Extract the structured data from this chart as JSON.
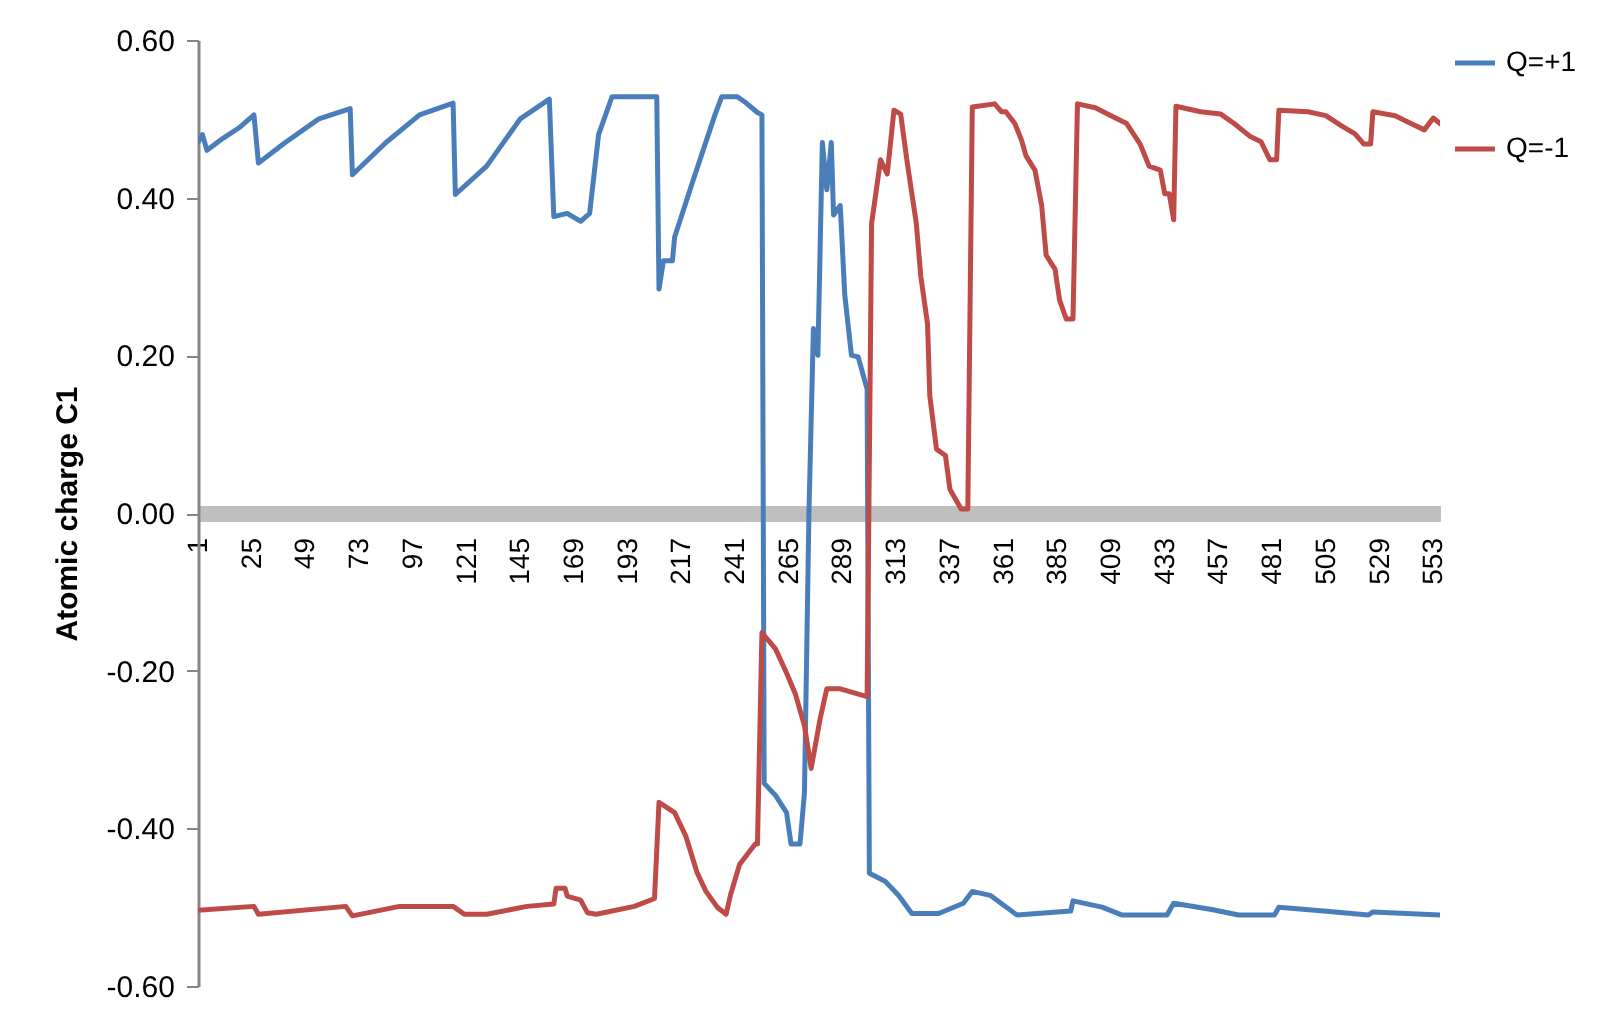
{
  "chart_data": {
    "type": "line",
    "ylabel": "Atomic charge C1",
    "xlim": [
      1,
      556
    ],
    "xticks": [
      1,
      25,
      49,
      73,
      97,
      121,
      145,
      169,
      193,
      217,
      241,
      265,
      289,
      313,
      337,
      361,
      385,
      409,
      433,
      457,
      481,
      505,
      529,
      553
    ],
    "ylim": [
      -0.6,
      0.6
    ],
    "yticks": [
      {
        "value": -0.6,
        "label": "-0.60"
      },
      {
        "value": -0.4,
        "label": "-0.40"
      },
      {
        "value": -0.2,
        "label": "-0.20"
      },
      {
        "value": 0,
        "label": "0.00"
      },
      {
        "value": 0.2,
        "label": "0.20"
      },
      {
        "value": 0.4,
        "label": "0.40"
      },
      {
        "value": 0.6,
        "label": "0.60"
      }
    ],
    "grid": false,
    "legend": "right",
    "marker": "none",
    "line_style": "solid",
    "series": [
      {
        "name": "Q=+1",
        "color": "#4a7ebb",
        "x": [
          1,
          3,
          5,
          12,
          20,
          26,
          28,
          40,
          55,
          69,
          70,
          85,
          100,
          115,
          116,
          130,
          145,
          158,
          160,
          166,
          172,
          176,
          180,
          186,
          206,
          207,
          209,
          213,
          214,
          222,
          232,
          235,
          242,
          246,
          251,
          253,
          254,
          259,
          264,
          266,
          270,
          272,
          274,
          276,
          278,
          280,
          282,
          284,
          285,
          288,
          290,
          293,
          296,
          300,
          301,
          308,
          314,
          320,
          332,
          343,
          347,
          355,
          367,
          391,
          392,
          405,
          414,
          434,
          437,
          454,
          466,
          482,
          484,
          504,
          524,
          526,
          556
        ],
        "values": [
          0.47,
          0.48,
          0.46,
          0.475,
          0.49,
          0.505,
          0.444,
          0.47,
          0.5,
          0.513,
          0.429,
          0.47,
          0.505,
          0.52,
          0.404,
          0.44,
          0.5,
          0.525,
          0.376,
          0.38,
          0.37,
          0.38,
          0.48,
          0.528,
          0.528,
          0.284,
          0.32,
          0.32,
          0.35,
          0.42,
          0.505,
          0.528,
          0.528,
          0.52,
          0.508,
          0.505,
          -0.343,
          -0.358,
          -0.38,
          -0.42,
          -0.42,
          -0.355,
          0,
          0.234,
          0.2,
          0.47,
          0.41,
          0.47,
          0.378,
          0.39,
          0.277,
          0.2,
          0.198,
          0.157,
          -0.457,
          -0.467,
          -0.485,
          -0.508,
          -0.508,
          -0.495,
          -0.48,
          -0.485,
          -0.51,
          -0.505,
          -0.492,
          -0.5,
          -0.51,
          -0.51,
          -0.495,
          -0.503,
          -0.51,
          -0.51,
          -0.5,
          -0.505,
          -0.51,
          -0.506,
          -0.51
        ]
      },
      {
        "name": "Q=-1",
        "color": "#be4b48",
        "x": [
          1,
          26,
          28,
          67,
          70,
          91,
          115,
          120,
          130,
          148,
          160,
          161,
          165,
          166,
          172,
          175,
          179,
          196,
          205,
          207,
          214,
          219,
          224,
          228,
          233,
          237,
          239,
          243,
          250,
          251,
          253,
          259,
          264,
          268,
          272,
          275,
          279,
          282,
          288,
          300,
          302,
          306,
          309,
          312,
          315,
          318,
          322,
          324,
          327,
          328,
          331,
          335,
          337,
          342,
          345,
          347,
          357,
          360,
          362,
          366,
          369,
          371,
          375,
          378,
          380,
          384,
          386,
          389,
          392,
          394,
          402,
          409,
          416,
          422,
          426,
          431,
          433,
          435,
          437,
          438,
          449,
          458,
          464,
          471,
          476,
          480,
          483,
          484,
          497,
          505,
          512,
          518,
          522,
          525,
          526,
          536,
          543,
          549,
          553,
          556
        ],
        "values": [
          -0.504,
          -0.499,
          -0.509,
          -0.499,
          -0.511,
          -0.499,
          -0.499,
          -0.509,
          -0.509,
          -0.499,
          -0.496,
          -0.476,
          -0.476,
          -0.486,
          -0.491,
          -0.507,
          -0.509,
          -0.499,
          -0.489,
          -0.367,
          -0.38,
          -0.41,
          -0.456,
          -0.48,
          -0.5,
          -0.509,
          -0.484,
          -0.446,
          -0.42,
          -0.42,
          -0.152,
          -0.172,
          -0.203,
          -0.23,
          -0.27,
          -0.324,
          -0.261,
          -0.223,
          -0.223,
          -0.233,
          0.367,
          0.448,
          0.43,
          0.511,
          0.506,
          0.443,
          0.367,
          0.3,
          0.24,
          0.149,
          0.081,
          0.073,
          0.03,
          0.005,
          0.005,
          0.515,
          0.519,
          0.509,
          0.509,
          0.494,
          0.473,
          0.453,
          0.435,
          0.39,
          0.327,
          0.309,
          0.27,
          0.246,
          0.246,
          0.519,
          0.514,
          0.504,
          0.494,
          0.468,
          0.44,
          0.435,
          0.405,
          0.405,
          0.372,
          0.516,
          0.509,
          0.506,
          0.494,
          0.478,
          0.471,
          0.448,
          0.448,
          0.511,
          0.509,
          0.504,
          0.491,
          0.481,
          0.468,
          0.468,
          0.509,
          0.504,
          0.494,
          0.486,
          0.501,
          0.494
        ]
      }
    ]
  }
}
